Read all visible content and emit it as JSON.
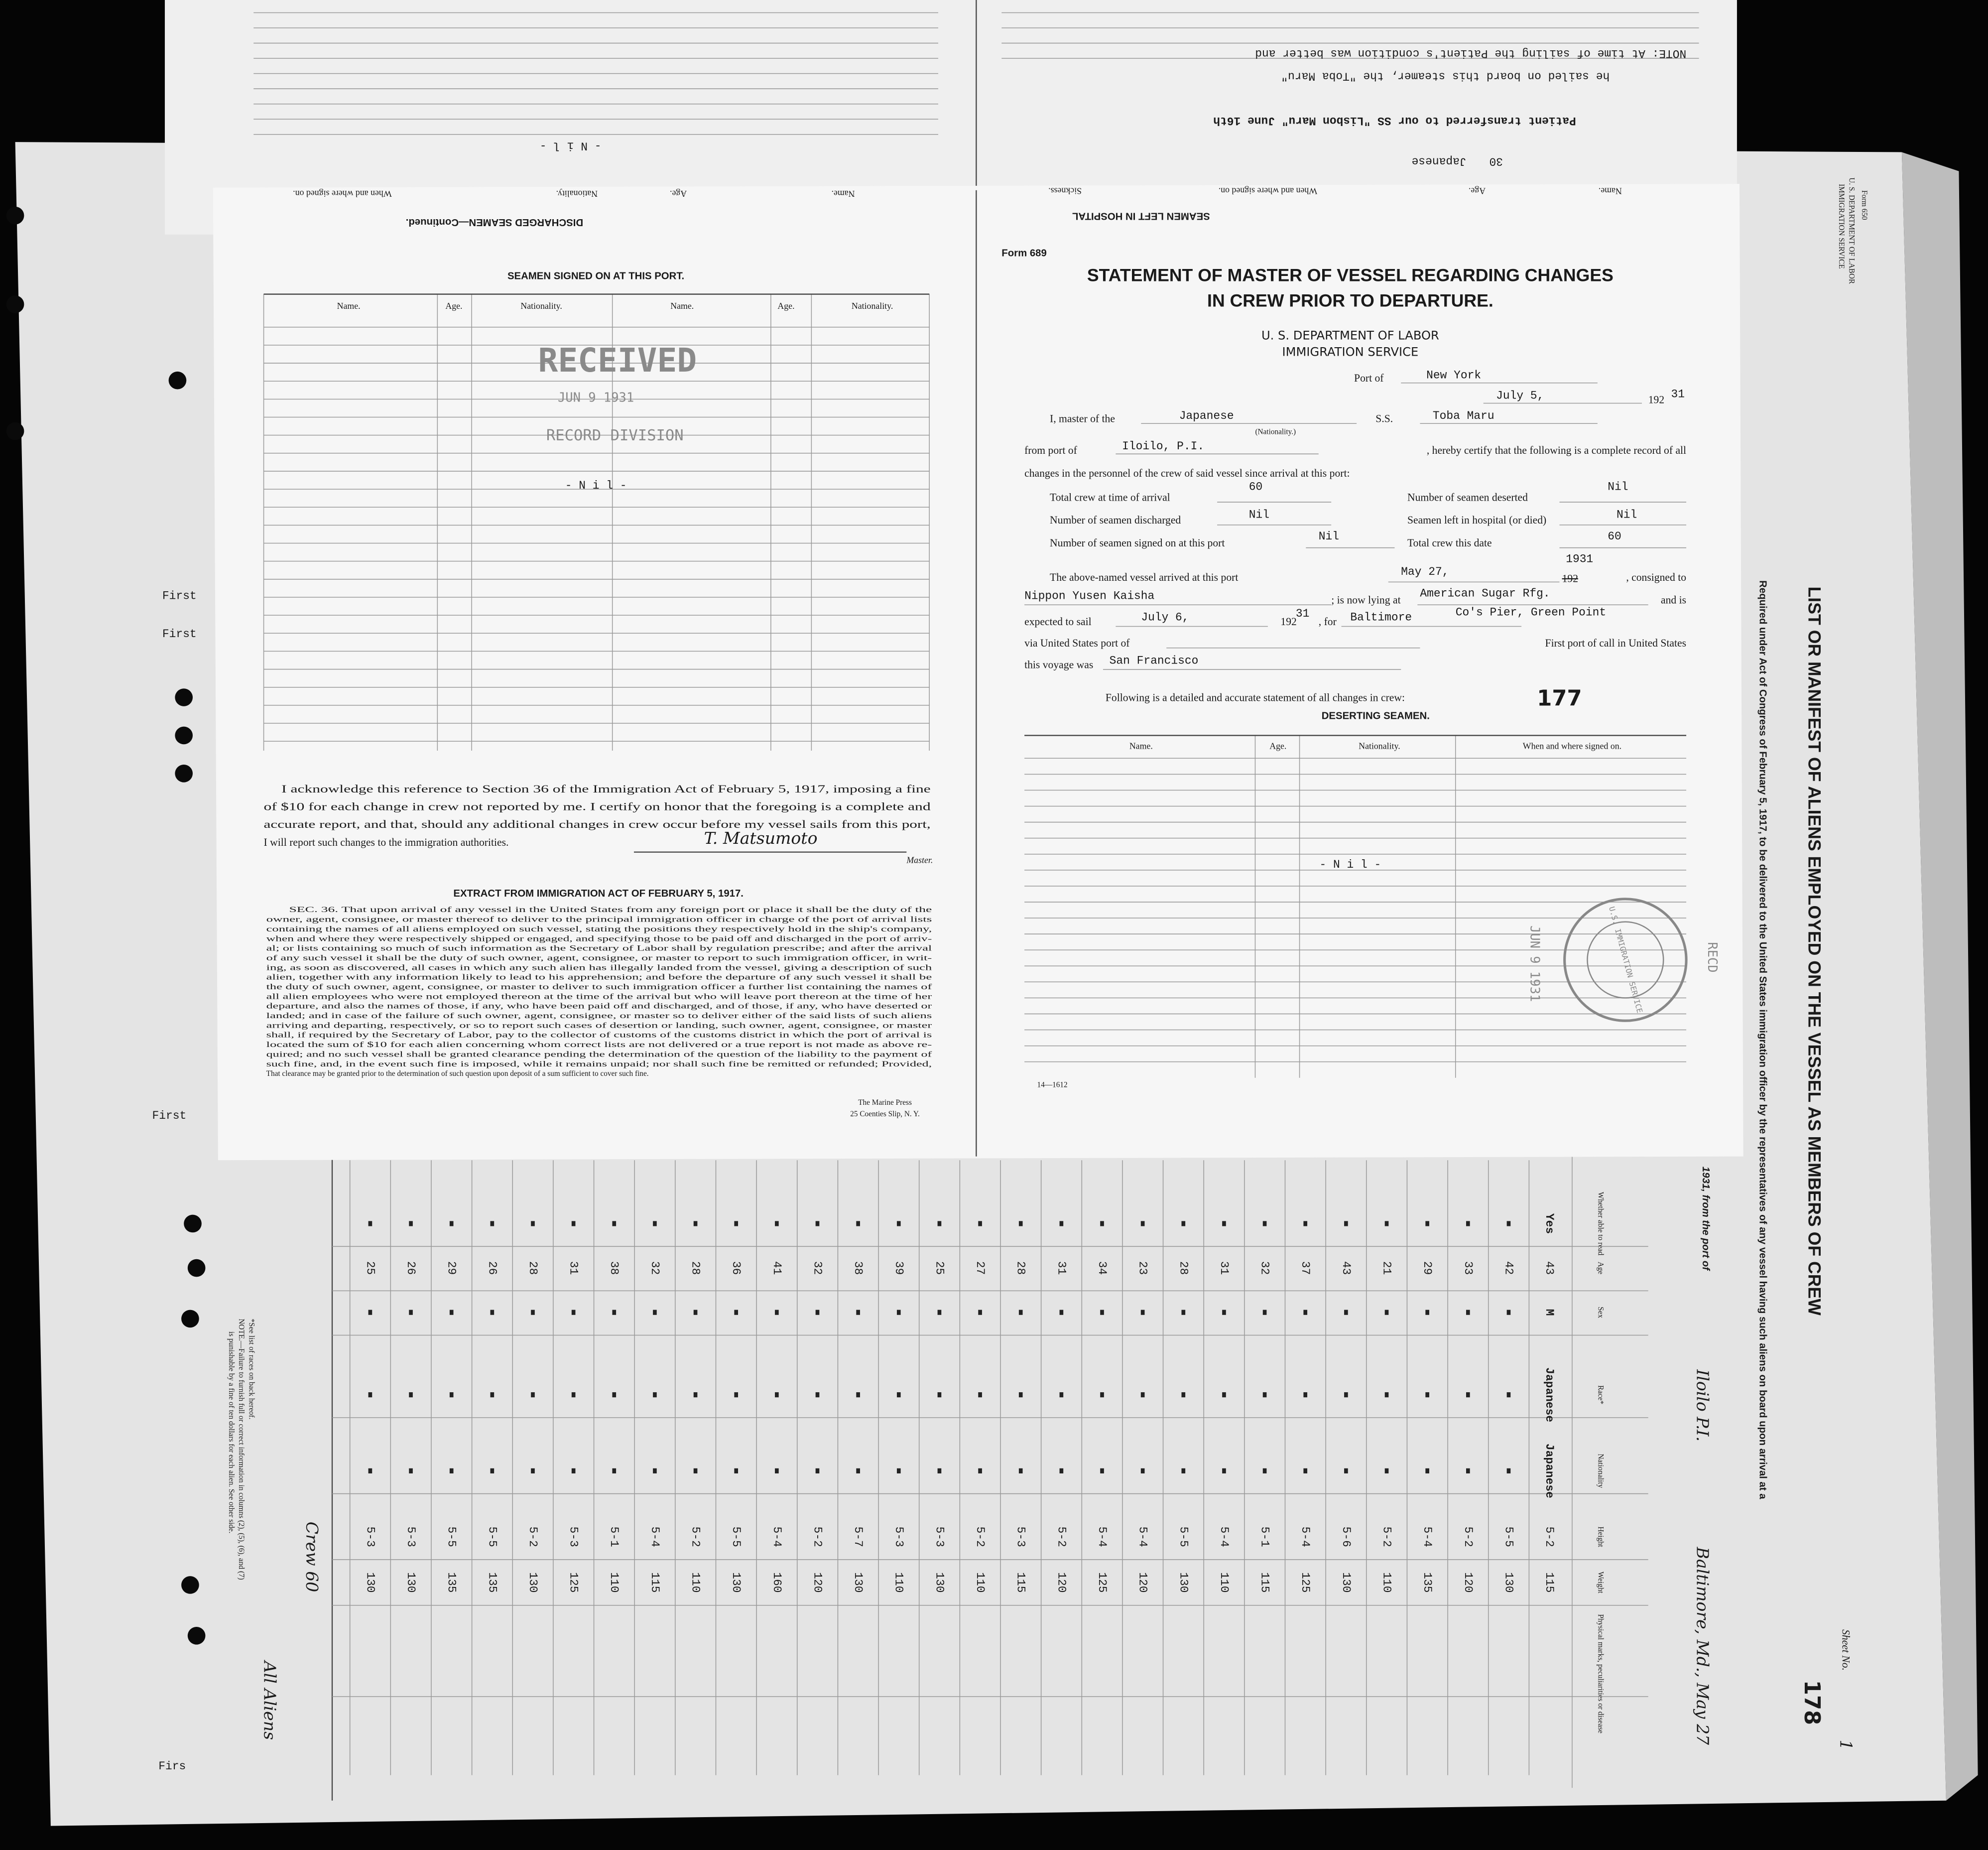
{
  "top_strip": {
    "discharged_header": "DISCHARGED SEAMEN—Continued.",
    "columns_left": [
      "When and where signed on.",
      "Nationality.",
      "Age.",
      "Name."
    ],
    "nil": "- N i l -",
    "hospital_header": "SEAMEN LEFT IN HOSPITAL",
    "columns_right": [
      "Sickness.",
      "When and where signed on.",
      "Age.",
      "Name."
    ],
    "hospital_entry": "Japanese",
    "hospital_age": "30",
    "transfer": "Patient transferred to our SS \"Lisbon Maru\" June 16th",
    "note_line1": "NOTE: At time of sailing the Patient's condition was better and",
    "note_line2": "he sailed on board this steamer, the \"Toba Maru\""
  },
  "form_left": {
    "section_title": "SEAMEN SIGNED ON AT THIS PORT.",
    "columns": [
      "Name.",
      "Age.",
      "Nationality.",
      "Name.",
      "Age.",
      "Nationality."
    ],
    "stamp_received": "RECEIVED",
    "stamp_date": "JUN 9 1931",
    "stamp_division": "RECORD DIVISION",
    "nil": "- N i l -",
    "acknowledgment": [
      "I acknowledge this reference to Section 36 of the Immigration Act of February 5, 1917, imposing a fine",
      "of $10 for each change in crew not reported by me.  I certify on honor that the foregoing is a complete and",
      "accurate report, and that, should any additional changes in crew occur before my vessel sails from this port,",
      "I will report such changes to the immigration authorities."
    ],
    "signature": "T. Matsumoto",
    "signature_role": "Master.",
    "extract_title": "EXTRACT FROM IMMIGRATION ACT OF FEBRUARY 5, 1917.",
    "extract_lines": [
      "SEC. 36. That upon arrival of any vessel in the United States from any foreign port or place it shall be the duty of the",
      "owner, agent, consignee, or master thereof to deliver to the principal immigration officer in charge of the port of arrival lists",
      "containing the names of all aliens employed on such vessel, stating the positions they respectively hold in the ship's company,",
      "when and where they were respectively shipped or engaged, and specifying those to be paid off and discharged in the port of arriv-",
      "al; or lists containing so much of such information as the Secretary of Labor shall by regulation prescribe; and after the arrival",
      "of any such vessel it shall be the duty of such owner, agent, consignee, or master to report to such immigration officer, in writ-",
      "ing, as soon as discovered, all cases in which any such alien has illegally landed from the vessel, giving a description of such",
      "alien, together with any information likely to lead to his apprehension; and before the departure of any such vessel it shall be",
      "the duty of such owner, agent, consignee, or master to deliver to such immigration officer a further list containing the names of",
      "all alien employees who were not employed thereon at the time of the arrival but who will leave port thereon at the time of her",
      "departure, and also the names of those, if any, who have been paid off and discharged, and of those, if any, who have deserted or",
      "landed; and in case of the failure of such owner, agent, consignee, or master so to deliver either of the said lists of such aliens",
      "arriving and departing, respectively, or so to report such cases of desertion or landing, such owner, agent, consignee, or master",
      "shall, if required by the Secretary of Labor, pay to the collector of customs of the customs district in which the port of arrival is",
      "located the sum of $10 for each alien concerning whom correct lists are not delivered or a true report is not made as above re-",
      "quired; and no such vessel shall be granted clearance pending the determination of the question of the liability to the payment of",
      "such fine, and, in the event such fine is imposed, while it remains unpaid; nor shall such fine be remitted or refunded; Provided,",
      "That clearance may be granted prior to the determination of such question upon deposit of a sum sufficient to cover such fine."
    ],
    "printer_name": "The Marine Press",
    "printer_address": "25 Coenties Slip, N. Y."
  },
  "form_right": {
    "form_no": "Form 689",
    "title_line1": "STATEMENT OF MASTER OF VESSEL REGARDING CHANGES",
    "title_line2": "IN CREW PRIOR TO DEPARTURE.",
    "department": "U. S. DEPARTMENT OF LABOR",
    "service": "IMMIGRATION SERVICE",
    "port_label": "Port of",
    "port": "New York",
    "date": "July 5,",
    "year_printed": "192",
    "year_typed": "31",
    "master_label": "I, master of the",
    "nationality": "Japanese",
    "nationality_hint": "(Nationality.)",
    "ss_label": "S.S.",
    "vessel": "Toba Maru",
    "from_label": "from port of",
    "from_port": "Iloilo, P.I.",
    "certify_text": ", hereby certify that the following is a complete record of all",
    "changes_text": "changes in the personnel of the crew of said vessel since arrival at this port:",
    "total_arrival_label": "Total crew at time of arrival",
    "total_arrival": "60",
    "deserted_label": "Number of seamen deserted",
    "deserted": "Nil",
    "discharged_label": "Number of seamen discharged",
    "discharged": "Nil",
    "hospital_label": "Seamen left in hospital (or died)",
    "hospital": "Nil",
    "signed_on_label": "Number of seamen signed on at this port",
    "signed_on": "Nil",
    "total_date_label": "Total crew this date",
    "total_date": "60",
    "arrived_label": "The above-named vessel arrived at this port",
    "arrived_date": "May 27,",
    "arrived_year_printed": "192",
    "arrived_year": "1931",
    "consigned_label": ", consigned to",
    "consignee": "Nippon Yusen Kaisha",
    "lying_label": "; is now lying at",
    "lying_at": "American Sugar Rfg.",
    "lying_at_2": "Co's Pier, Green Point",
    "and_is": "and is",
    "sail_label": "expected to sail",
    "sail_date": "July 6,",
    "sail_year_printed": "192",
    "sail_year": "31",
    "for_label": ", for",
    "destination": "Baltimore",
    "via_label": "via United States port of",
    "first_port_label": "First port of call in United States",
    "voyage_label": "this voyage was",
    "first_port": "San Francisco",
    "following_text": "Following is a detailed and accurate statement of all changes in crew:",
    "sheet_number": "177",
    "deserting_title": "DESERTING SEAMEN.",
    "columns": [
      "Name.",
      "Age.",
      "Nationality.",
      "When and where signed on."
    ],
    "nil": "- N i l -",
    "stamp_date": "JUN 9 1931",
    "stamp_recd": "RECD",
    "stamp_ring": "U.S. IMMIGRATION SERVICE",
    "code": "14—1612"
  },
  "manifest": {
    "form_no": "Form 650",
    "department": "U. S. DEPARTMENT OF LABOR",
    "service": "IMMIGRATION SERVICE",
    "title": "LIST OR MANIFEST OF ALIENS EMPLOYED ON THE VESSEL AS MEMBERS OF CREW",
    "subtitle": "Required under Act of Congress of February 5, 1917, to be delivered to the United States immigration officer by the representatives of any vessel having such aliens on board upon arrival at a",
    "port_line": "1931, from the port of",
    "port_from": "Iloilo P.I.",
    "arrival": "Baltimore, Md., May 27",
    "sheet_label": "Sheet No.",
    "sheet": "1",
    "page_number": "178",
    "columns": [
      "Whether able to read",
      "Age",
      "Sex",
      "Race*",
      "Nationality",
      "Height",
      "Weight",
      "Physical marks, peculiarities or disease"
    ],
    "first_read": "Yes",
    "first_sex": "M",
    "first_race": "Japanese",
    "first_nationality": "Japanese",
    "ages": [
      43,
      42,
      33,
      29,
      21,
      43,
      37,
      32,
      31,
      28,
      23,
      34,
      31,
      28,
      27,
      25,
      39,
      38,
      32,
      41,
      36,
      28,
      32,
      38,
      31,
      28,
      26,
      29,
      26,
      25
    ],
    "heights": [
      "5-2",
      "5-5",
      "5-2",
      "5-4",
      "5-2",
      "5-6",
      "5-4",
      "5-1",
      "5-4",
      "5-5",
      "5-4",
      "5-4",
      "5-2",
      "5-3",
      "5-2",
      "5-3",
      "5-3",
      "5-7",
      "5-2",
      "5-4",
      "5-5",
      "5-2",
      "5-4",
      "5-1",
      "5-3",
      "5-2",
      "5-5",
      "5-5",
      "5-3",
      "5-3"
    ],
    "weights": [
      115,
      130,
      120,
      135,
      110,
      130,
      125,
      115,
      110,
      130,
      120,
      125,
      120,
      115,
      110,
      130,
      110,
      130,
      120,
      160,
      130,
      110,
      115,
      110,
      125,
      130,
      135,
      135,
      130,
      130
    ],
    "left_labels": [
      "First",
      "First",
      "First",
      "Firs"
    ],
    "crew_note": "Crew 60",
    "aliens_note": "All Aliens",
    "footnote_1": "*See list of races on back hereof.",
    "footnote_2": "NOTE.—Failure to furnish full or correct information in columns (2), (5), (6), and (7)",
    "footnote_3": "is punishable by a fine of ten dollars for each alien.  See other side."
  }
}
